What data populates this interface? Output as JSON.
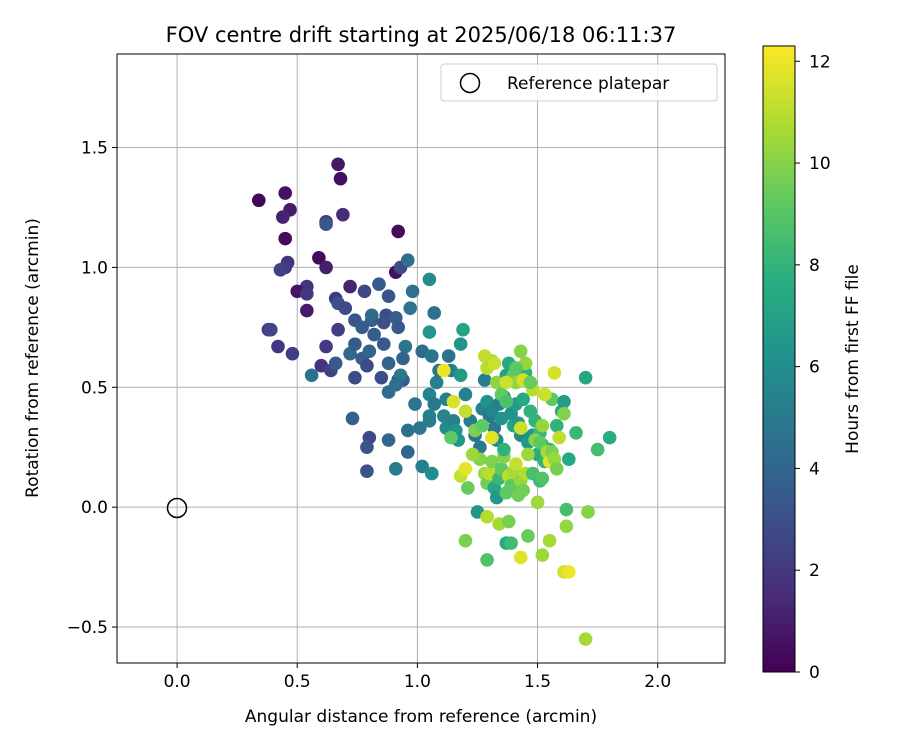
{
  "chart_data": {
    "type": "scatter",
    "title": "FOV centre drift starting at 2025/06/18 06:11:37",
    "xlabel": "Angular distance from reference (arcmin)",
    "ylabel": "Rotation from reference (arcmin)",
    "xlim": [
      -0.25,
      2.28
    ],
    "ylim": [
      -0.65,
      1.89
    ],
    "x_ticks": [
      0.0,
      0.5,
      1.0,
      1.5,
      2.0
    ],
    "x_tick_labels": [
      "0.0",
      "0.5",
      "1.0",
      "1.5",
      "2.0"
    ],
    "y_ticks": [
      -0.5,
      0.0,
      0.5,
      1.0,
      1.5
    ],
    "y_tick_labels": [
      "−0.5",
      "0.0",
      "0.5",
      "1.0",
      "1.5"
    ],
    "grid": true,
    "legend": {
      "placement": "top-right",
      "entries": [
        "Reference platepar"
      ]
    },
    "colorbar": {
      "label": "Hours from first FF file",
      "range": [
        0,
        12.3
      ],
      "colormap": "viridis",
      "ticks": [
        0,
        2,
        4,
        6,
        8,
        10,
        12
      ],
      "tick_labels": [
        "0",
        "2",
        "4",
        "6",
        "8",
        "10",
        "12"
      ]
    },
    "reference_point": {
      "x": 0.0,
      "y": 0.0
    },
    "points": [
      [
        0.34,
        1.28,
        0.2
      ],
      [
        0.45,
        1.31,
        0.6
      ],
      [
        0.47,
        1.24,
        0.9
      ],
      [
        0.44,
        1.21,
        1.2
      ],
      [
        0.45,
        1.12,
        0.3
      ],
      [
        0.67,
        1.43,
        0.8
      ],
      [
        0.68,
        1.37,
        0.5
      ],
      [
        0.69,
        1.22,
        1.5
      ],
      [
        0.62,
        1.19,
        2.0
      ],
      [
        0.62,
        1.18,
        3.3
      ],
      [
        0.92,
        1.15,
        0.4
      ],
      [
        0.59,
        1.04,
        0.3
      ],
      [
        0.62,
        1.0,
        1.0
      ],
      [
        0.46,
        1.02,
        1.8
      ],
      [
        0.45,
        1.0,
        2.1
      ],
      [
        0.43,
        0.99,
        2.4
      ],
      [
        0.54,
        0.92,
        1.8
      ],
      [
        0.5,
        0.9,
        0.7
      ],
      [
        0.54,
        0.89,
        2.0
      ],
      [
        0.54,
        0.82,
        0.9
      ],
      [
        0.66,
        0.87,
        2.0
      ],
      [
        0.72,
        0.92,
        1.2
      ],
      [
        0.78,
        0.9,
        2.6
      ],
      [
        0.84,
        0.93,
        3.4
      ],
      [
        0.91,
        0.98,
        0.5
      ],
      [
        0.93,
        1.0,
        2.8
      ],
      [
        0.96,
        1.03,
        4.4
      ],
      [
        0.98,
        0.9,
        4.6
      ],
      [
        1.05,
        0.95,
        5.9
      ],
      [
        0.67,
        0.85,
        3.0
      ],
      [
        0.7,
        0.83,
        2.7
      ],
      [
        0.74,
        0.78,
        3.2
      ],
      [
        0.77,
        0.75,
        3.5
      ],
      [
        0.81,
        0.78,
        3.6
      ],
      [
        0.81,
        0.8,
        4.2
      ],
      [
        0.87,
        0.8,
        2.9
      ],
      [
        0.86,
        0.77,
        3.0
      ],
      [
        0.91,
        0.79,
        3.6
      ],
      [
        0.92,
        0.75,
        3.4
      ],
      [
        0.97,
        0.83,
        4.8
      ],
      [
        1.07,
        0.81,
        4.6
      ],
      [
        0.88,
        0.88,
        3.1
      ],
      [
        0.38,
        0.74,
        2.2
      ],
      [
        0.39,
        0.74,
        2.6
      ],
      [
        0.42,
        0.67,
        2.0
      ],
      [
        0.48,
        0.64,
        2.3
      ],
      [
        0.67,
        0.74,
        2.2
      ],
      [
        0.62,
        0.67,
        2.1
      ],
      [
        0.6,
        0.59,
        1.8
      ],
      [
        0.56,
        0.55,
        4.6
      ],
      [
        0.64,
        0.57,
        2.4
      ],
      [
        0.66,
        0.6,
        3.5
      ],
      [
        0.72,
        0.64,
        4.2
      ],
      [
        0.74,
        0.68,
        3.5
      ],
      [
        0.74,
        0.54,
        2.8
      ],
      [
        0.77,
        0.62,
        3.7
      ],
      [
        0.79,
        0.59,
        2.7
      ],
      [
        0.8,
        0.65,
        3.9
      ],
      [
        0.82,
        0.72,
        3.6
      ],
      [
        0.86,
        0.68,
        3.4
      ],
      [
        0.88,
        0.6,
        3.9
      ],
      [
        0.85,
        0.54,
        2.9
      ],
      [
        0.88,
        0.48,
        4.3
      ],
      [
        0.92,
        0.53,
        2.8
      ],
      [
        0.94,
        0.53,
        3.4
      ],
      [
        0.95,
        0.67,
        4.8
      ],
      [
        0.94,
        0.62,
        4.0
      ],
      [
        0.93,
        0.55,
        4.9
      ],
      [
        0.91,
        0.51,
        4.5
      ],
      [
        1.02,
        0.65,
        4.3
      ],
      [
        1.05,
        0.73,
        6.4
      ],
      [
        0.73,
        0.37,
        3.8
      ],
      [
        0.8,
        0.29,
        2.6
      ],
      [
        0.79,
        0.25,
        3.2
      ],
      [
        0.79,
        0.15,
        3.1
      ],
      [
        0.88,
        0.28,
        4.0
      ],
      [
        0.91,
        0.16,
        5.0
      ],
      [
        0.96,
        0.23,
        4.1
      ],
      [
        0.96,
        0.32,
        4.5
      ],
      [
        0.99,
        0.43,
        4.8
      ],
      [
        1.01,
        0.33,
        4.9
      ],
      [
        1.02,
        0.17,
        5.2
      ],
      [
        1.06,
        0.14,
        6.0
      ],
      [
        1.06,
        0.63,
        4.7
      ],
      [
        1.05,
        0.47,
        5.4
      ],
      [
        1.05,
        0.38,
        5.3
      ],
      [
        1.07,
        0.43,
        4.9
      ],
      [
        1.08,
        0.52,
        5.2
      ],
      [
        1.09,
        0.57,
        4.8
      ],
      [
        1.11,
        0.38,
        5.5
      ],
      [
        1.12,
        0.33,
        6.0
      ],
      [
        1.12,
        0.45,
        5.3
      ],
      [
        1.13,
        0.63,
        4.6
      ],
      [
        1.14,
        0.57,
        5.2
      ],
      [
        1.15,
        0.36,
        5.4
      ],
      [
        1.16,
        0.32,
        6.3
      ],
      [
        1.17,
        0.28,
        6.4
      ],
      [
        1.18,
        0.55,
        6.6
      ],
      [
        1.18,
        0.68,
        6.3
      ],
      [
        1.19,
        0.74,
        7.2
      ],
      [
        1.2,
        0.47,
        5.3
      ],
      [
        1.22,
        0.36,
        5.1
      ],
      [
        1.24,
        0.3,
        4.8
      ],
      [
        1.26,
        0.25,
        4.9
      ],
      [
        1.27,
        0.41,
        5.4
      ],
      [
        1.28,
        0.53,
        5.1
      ],
      [
        1.29,
        0.44,
        6.3
      ],
      [
        1.3,
        0.38,
        4.7
      ],
      [
        1.31,
        0.4,
        5.5
      ],
      [
        1.32,
        0.33,
        5.0
      ],
      [
        1.33,
        0.28,
        6.0
      ],
      [
        1.34,
        0.43,
        5.2
      ],
      [
        1.35,
        0.37,
        6.3
      ],
      [
        1.36,
        0.46,
        5.9
      ],
      [
        1.37,
        0.55,
        7.0
      ],
      [
        1.38,
        0.6,
        7.5
      ],
      [
        1.39,
        0.39,
        6.2
      ],
      [
        1.4,
        0.34,
        7.3
      ],
      [
        1.41,
        0.43,
        6.8
      ],
      [
        1.42,
        0.35,
        6.6
      ],
      [
        1.43,
        0.3,
        5.6
      ],
      [
        1.44,
        0.45,
        7.4
      ],
      [
        1.45,
        0.56,
        7.8
      ],
      [
        1.46,
        0.27,
        6.6
      ],
      [
        1.47,
        0.4,
        7.9
      ],
      [
        1.48,
        0.3,
        6.3
      ],
      [
        1.49,
        0.36,
        8.0
      ],
      [
        1.5,
        0.22,
        7.5
      ],
      [
        1.51,
        0.31,
        8.2
      ],
      [
        1.52,
        0.26,
        7.8
      ],
      [
        1.53,
        0.19,
        7.9
      ],
      [
        1.55,
        0.24,
        8.2
      ],
      [
        1.56,
        0.45,
        9.2
      ],
      [
        1.58,
        0.34,
        8.0
      ],
      [
        1.6,
        0.4,
        7.4
      ],
      [
        1.61,
        0.44,
        6.8
      ],
      [
        1.63,
        0.2,
        7.5
      ],
      [
        1.66,
        0.31,
        8.2
      ],
      [
        1.7,
        0.54,
        7.3
      ],
      [
        1.75,
        0.24,
        8.5
      ],
      [
        1.8,
        0.29,
        7.6
      ],
      [
        1.26,
        0.2,
        10.0
      ],
      [
        1.28,
        0.14,
        10.5
      ],
      [
        1.29,
        0.1,
        9.6
      ],
      [
        1.3,
        0.14,
        11.0
      ],
      [
        1.31,
        0.19,
        9.9
      ],
      [
        1.32,
        0.08,
        7.3
      ],
      [
        1.33,
        0.04,
        6.5
      ],
      [
        1.34,
        0.12,
        8.2
      ],
      [
        1.35,
        0.16,
        9.2
      ],
      [
        1.36,
        0.21,
        10.0
      ],
      [
        1.37,
        0.06,
        9.2
      ],
      [
        1.38,
        0.13,
        11.0
      ],
      [
        1.39,
        0.09,
        9.2
      ],
      [
        1.4,
        0.15,
        10.6
      ],
      [
        1.41,
        0.18,
        11.2
      ],
      [
        1.42,
        0.05,
        9.6
      ],
      [
        1.43,
        0.11,
        10.3
      ],
      [
        1.44,
        0.07,
        9.6
      ],
      [
        1.45,
        0.14,
        10.9
      ],
      [
        1.46,
        0.22,
        10.4
      ],
      [
        1.48,
        0.14,
        8.6
      ],
      [
        1.5,
        0.02,
        10.5
      ],
      [
        1.51,
        0.11,
        8.3
      ],
      [
        1.52,
        0.12,
        8.8
      ],
      [
        1.18,
        0.13,
        11.2
      ],
      [
        1.2,
        0.16,
        11.8
      ],
      [
        1.21,
        0.08,
        9.4
      ],
      [
        1.25,
        -0.02,
        6.4
      ],
      [
        1.29,
        -0.04,
        10.9
      ],
      [
        1.34,
        -0.07,
        10.6
      ],
      [
        1.37,
        -0.15,
        7.5
      ],
      [
        1.38,
        -0.06,
        9.7
      ],
      [
        1.39,
        -0.15,
        8.4
      ],
      [
        1.43,
        -0.21,
        11.7
      ],
      [
        1.46,
        -0.12,
        9.4
      ],
      [
        1.52,
        -0.2,
        10.4
      ],
      [
        1.55,
        -0.14,
        10.6
      ],
      [
        1.61,
        -0.27,
        11.5
      ],
      [
        1.63,
        -0.27,
        12.0
      ],
      [
        1.62,
        -0.08,
        10.3
      ],
      [
        1.62,
        -0.01,
        8.6
      ],
      [
        1.71,
        -0.02,
        10.0
      ],
      [
        1.7,
        -0.55,
        10.6
      ],
      [
        1.2,
        -0.14,
        9.8
      ],
      [
        1.29,
        -0.22,
        8.8
      ],
      [
        1.14,
        0.29,
        9.2
      ],
      [
        1.15,
        0.44,
        11.6
      ],
      [
        1.2,
        0.4,
        11.2
      ],
      [
        1.23,
        0.22,
        10.4
      ],
      [
        1.24,
        0.32,
        9.8
      ],
      [
        1.27,
        0.34,
        9.2
      ],
      [
        1.29,
        0.58,
        11.0
      ],
      [
        1.31,
        0.61,
        10.5
      ],
      [
        1.32,
        0.6,
        11.3
      ],
      [
        1.33,
        0.52,
        10.1
      ],
      [
        1.35,
        0.47,
        9.2
      ],
      [
        1.37,
        0.44,
        8.7
      ],
      [
        1.4,
        0.55,
        9.3
      ],
      [
        1.41,
        0.52,
        10.2
      ],
      [
        1.43,
        0.33,
        11.3
      ],
      [
        1.44,
        0.53,
        11.5
      ],
      [
        1.45,
        0.6,
        10.3
      ],
      [
        1.48,
        0.49,
        11.0
      ],
      [
        1.49,
        0.28,
        10.1
      ],
      [
        1.51,
        0.27,
        9.2
      ],
      [
        1.52,
        0.34,
        10.3
      ],
      [
        1.53,
        0.47,
        11.3
      ],
      [
        1.54,
        0.23,
        10.6
      ],
      [
        1.55,
        0.19,
        11.8
      ],
      [
        1.56,
        0.23,
        9.8
      ],
      [
        1.57,
        0.2,
        10.4
      ],
      [
        1.58,
        0.16,
        9.7
      ],
      [
        1.59,
        0.29,
        11.1
      ],
      [
        1.61,
        0.39,
        9.9
      ],
      [
        1.57,
        0.56,
        11.5
      ],
      [
        1.43,
        0.65,
        10.0
      ],
      [
        1.37,
        0.52,
        11.3
      ],
      [
        1.28,
        0.63,
        11.1
      ],
      [
        1.11,
        0.57,
        12.0
      ],
      [
        1.31,
        0.29,
        11.7
      ],
      [
        1.36,
        0.24,
        7.9
      ],
      [
        1.41,
        0.58,
        9.1
      ],
      [
        1.47,
        0.52,
        9.4
      ],
      [
        1.05,
        0.36,
        5.2
      ]
    ]
  }
}
